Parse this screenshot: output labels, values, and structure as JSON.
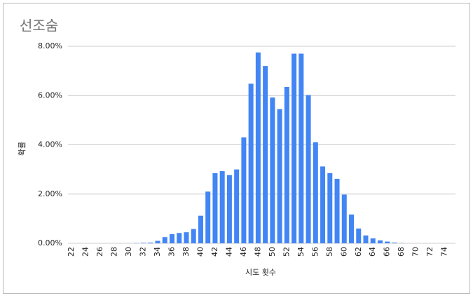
{
  "chart_data": {
    "type": "bar",
    "title": "선조숨",
    "x_label": "시도 횟수",
    "y_label": "확률",
    "categories": [
      22,
      null,
      24,
      null,
      26,
      null,
      28,
      null,
      30,
      null,
      32,
      null,
      34,
      null,
      36,
      null,
      38,
      null,
      40,
      null,
      42,
      null,
      44,
      null,
      46,
      null,
      48,
      null,
      50,
      null,
      52,
      null,
      54,
      null,
      56,
      null,
      58,
      null,
      60,
      null,
      62,
      null,
      64,
      null,
      66,
      null,
      68,
      null,
      70,
      null,
      72,
      null,
      74,
      null
    ],
    "values": [
      0,
      0,
      0,
      0,
      0,
      0,
      0,
      0,
      0,
      0.01,
      0.02,
      0.03,
      0.1,
      0.25,
      0.37,
      0.42,
      0.45,
      0.58,
      1.12,
      2.1,
      2.85,
      2.93,
      2.77,
      3.0,
      4.3,
      6.48,
      7.75,
      7.2,
      5.92,
      5.45,
      6.35,
      7.7,
      7.7,
      6.02,
      4.1,
      3.12,
      2.85,
      2.62,
      1.98,
      1.17,
      0.6,
      0.32,
      0.2,
      0.12,
      0.07,
      0.03,
      0.01,
      0,
      0,
      0,
      0,
      0,
      0,
      0
    ],
    "color": "#4285f4",
    "ylim": [
      0,
      8
    ],
    "yticks": [
      {
        "value": 0,
        "label": "0.00%"
      },
      {
        "value": 2,
        "label": "2.00%"
      },
      {
        "value": 4,
        "label": "4.00%"
      },
      {
        "value": 6,
        "label": "6.00%"
      },
      {
        "value": 8,
        "label": "8.00%"
      }
    ],
    "grid": true
  }
}
